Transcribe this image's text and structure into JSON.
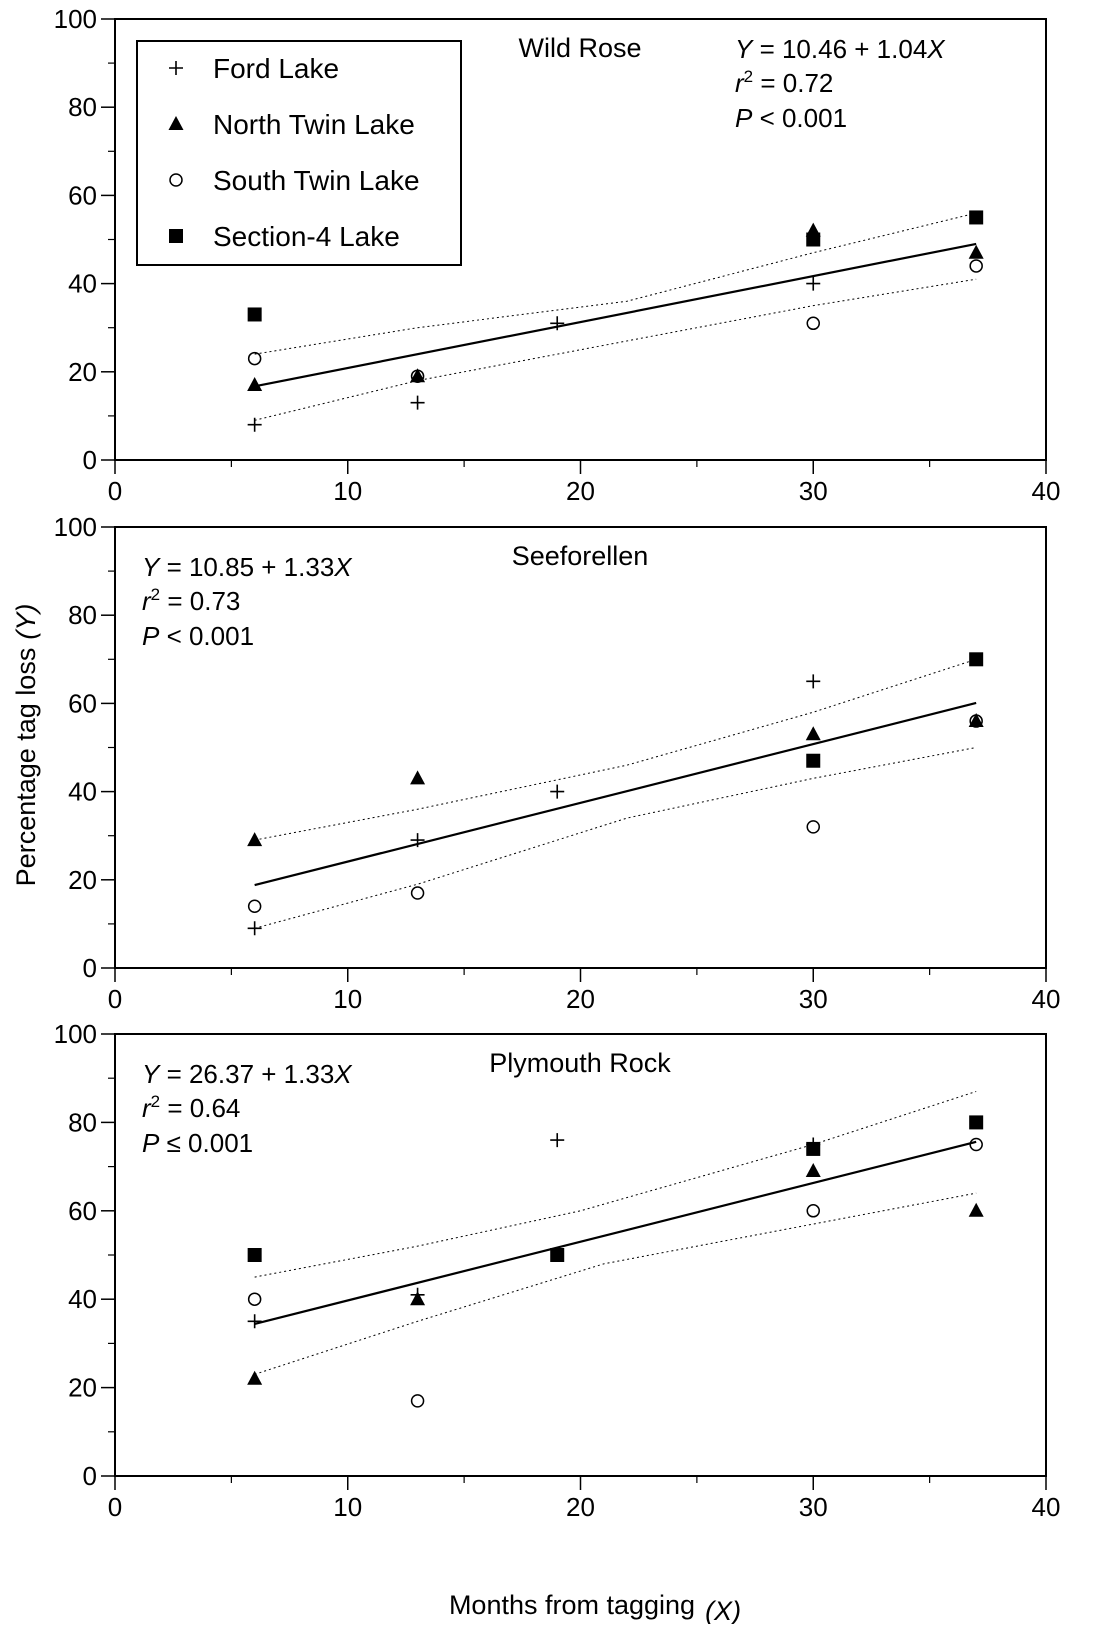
{
  "figure": {
    "xlabel": "Months from tagging",
    "xlabel_var": "(X)",
    "ylabel": "Percentage tag loss",
    "ylabel_var": "(Y)"
  },
  "legend": [
    {
      "label": "Ford Lake",
      "marker": "plus-icon"
    },
    {
      "label": "North Twin Lake",
      "marker": "filled-triangle-icon"
    },
    {
      "label": "South Twin Lake",
      "marker": "open-circle-icon"
    },
    {
      "label": "Section-4 Lake",
      "marker": "filled-square-icon"
    }
  ],
  "colors": {
    "ink": "#000000",
    "background": "#ffffff"
  },
  "chart_data": [
    {
      "type": "scatter",
      "title": "Wild Rose",
      "equation": {
        "y_var": "Y",
        "intercept": "10.46",
        "slope": "1.04",
        "x_var": "X",
        "r2": "0.72",
        "p_sym": "<",
        "p": "0.001"
      },
      "xlim": [
        0,
        40
      ],
      "ylim": [
        0,
        100
      ],
      "xticks": [
        0,
        10,
        20,
        30,
        40
      ],
      "yticks": [
        0,
        20,
        40,
        60,
        80,
        100
      ],
      "series": [
        {
          "name": "Ford Lake",
          "x": [
            6,
            13,
            19,
            30
          ],
          "y": [
            8,
            13,
            31,
            40
          ]
        },
        {
          "name": "North Twin Lake",
          "x": [
            6,
            13,
            30,
            37
          ],
          "y": [
            17,
            19,
            52,
            47
          ]
        },
        {
          "name": "South Twin Lake",
          "x": [
            6,
            13,
            30,
            37
          ],
          "y": [
            23,
            19,
            31,
            44
          ]
        },
        {
          "name": "Section-4 Lake",
          "x": [
            6,
            30,
            37
          ],
          "y": [
            33,
            50,
            55
          ]
        }
      ],
      "fit": {
        "x": [
          6,
          37
        ],
        "y": [
          16.7,
          49.0
        ]
      },
      "ci_upper": {
        "x": [
          6,
          13,
          22,
          30,
          37
        ],
        "y": [
          24,
          30,
          36,
          47,
          56
        ]
      },
      "ci_lower": {
        "x": [
          6,
          13,
          22,
          30,
          37
        ],
        "y": [
          9,
          18,
          27,
          35,
          41
        ]
      }
    },
    {
      "type": "scatter",
      "title": "Seeforellen",
      "equation": {
        "y_var": "Y",
        "intercept": "10.85",
        "slope": "1.33",
        "x_var": "X",
        "r2": "0.73",
        "p_sym": "<",
        "p": "0.001"
      },
      "xlim": [
        0,
        40
      ],
      "ylim": [
        0,
        100
      ],
      "xticks": [
        0,
        10,
        20,
        30,
        40
      ],
      "yticks": [
        0,
        20,
        40,
        60,
        80,
        100
      ],
      "series": [
        {
          "name": "Ford Lake",
          "x": [
            6,
            13,
            19,
            30
          ],
          "y": [
            9,
            29,
            40,
            65
          ]
        },
        {
          "name": "North Twin Lake",
          "x": [
            6,
            13,
            30,
            37
          ],
          "y": [
            29,
            43,
            53,
            56
          ]
        },
        {
          "name": "South Twin Lake",
          "x": [
            6,
            13,
            30,
            37
          ],
          "y": [
            14,
            17,
            32,
            56
          ]
        },
        {
          "name": "Section-4 Lake",
          "x": [
            30,
            37
          ],
          "y": [
            47,
            70
          ]
        }
      ],
      "fit": {
        "x": [
          6,
          37
        ],
        "y": [
          18.8,
          60.1
        ]
      },
      "ci_upper": {
        "x": [
          6,
          13,
          22,
          30,
          37
        ],
        "y": [
          29,
          36,
          46,
          58,
          70
        ]
      },
      "ci_lower": {
        "x": [
          6,
          13,
          22,
          30,
          37
        ],
        "y": [
          9,
          19,
          34,
          43,
          50
        ]
      }
    },
    {
      "type": "scatter",
      "title": "Plymouth Rock",
      "equation": {
        "y_var": "Y",
        "intercept": "26.37",
        "slope": "1.33",
        "x_var": "X",
        "r2": "0.64",
        "p_sym": "≤",
        "p": "0.001"
      },
      "xlim": [
        0,
        40
      ],
      "ylim": [
        0,
        100
      ],
      "xticks": [
        0,
        10,
        20,
        30,
        40
      ],
      "yticks": [
        0,
        20,
        40,
        60,
        80,
        100
      ],
      "series": [
        {
          "name": "Ford Lake",
          "x": [
            6,
            13,
            19,
            30
          ],
          "y": [
            35,
            41,
            76,
            75
          ]
        },
        {
          "name": "North Twin Lake",
          "x": [
            6,
            13,
            30,
            37
          ],
          "y": [
            22,
            40,
            69,
            60
          ]
        },
        {
          "name": "South Twin Lake",
          "x": [
            6,
            13,
            30,
            37
          ],
          "y": [
            40,
            17,
            60,
            75
          ]
        },
        {
          "name": "Section-4 Lake",
          "x": [
            6,
            19,
            30,
            37
          ],
          "y": [
            50,
            50,
            74,
            80
          ]
        }
      ],
      "fit": {
        "x": [
          6,
          37
        ],
        "y": [
          34.4,
          75.6
        ]
      },
      "ci_upper": {
        "x": [
          6,
          13,
          20,
          30,
          37
        ],
        "y": [
          45,
          52,
          60,
          75,
          87
        ]
      },
      "ci_lower": {
        "x": [
          6,
          13,
          21,
          30,
          37
        ],
        "y": [
          23,
          35,
          48,
          57,
          64
        ]
      }
    }
  ]
}
